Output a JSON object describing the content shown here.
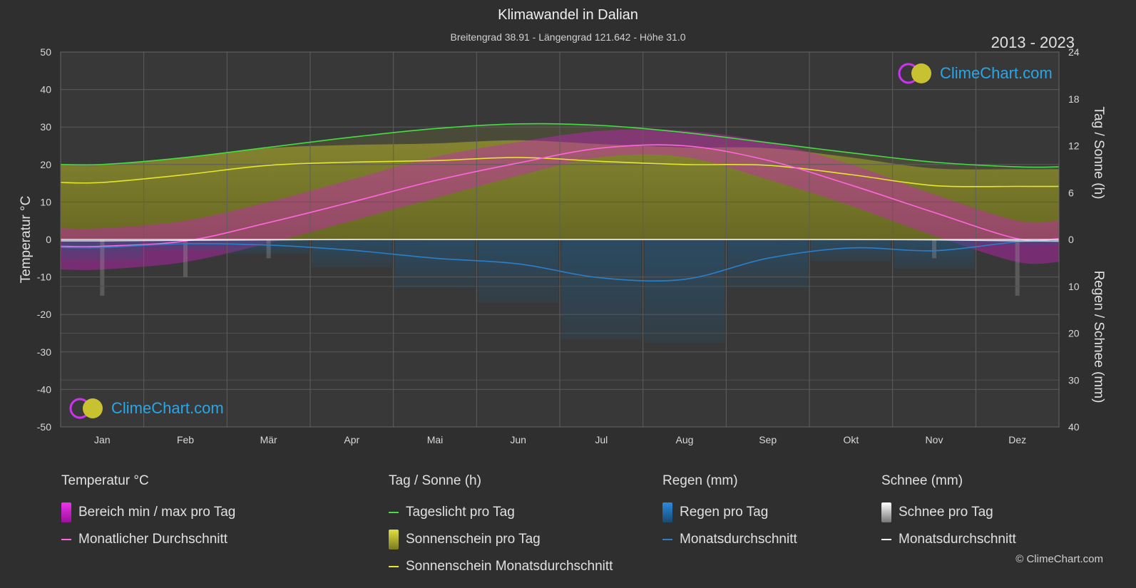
{
  "header": {
    "title": "Klimawandel in Dalian",
    "subtitle": "Breitengrad 38.91 - Längengrad 121.642 - Höhe 31.0",
    "period": "2013 - 2023"
  },
  "logo_text": "ClimeChart.com",
  "copyright": "© ClimeChart.com",
  "colors": {
    "background": "#2f2f2f",
    "daylight": "#44dd44",
    "sunshine_avg": "#e6e62a",
    "sunshine_fill": "#9a9a2a",
    "temp_avg": "#ff66dd",
    "temp_range": "#dd22cc",
    "rain": "#2a7fc8",
    "snow": "#cccccc"
  },
  "legend": {
    "temp": {
      "title": "Temperatur °C",
      "items": [
        "Bereich min / max pro Tag",
        "Monatlicher Durchschnitt"
      ]
    },
    "sun": {
      "title": "Tag / Sonne (h)",
      "items": [
        "Tageslicht pro Tag",
        "Sonnenschein pro Tag",
        "Sonnenschein Monatsdurchschnitt"
      ]
    },
    "rain": {
      "title": "Regen (mm)",
      "items": [
        "Regen pro Tag",
        "Monatsdurchschnitt"
      ]
    },
    "snow": {
      "title": "Schnee (mm)",
      "items": [
        "Schnee pro Tag",
        "Monatsdurchschnitt"
      ]
    }
  },
  "chart_data": {
    "type": "line",
    "categories": [
      "Jan",
      "Feb",
      "Mär",
      "Apr",
      "Mai",
      "Jun",
      "Jul",
      "Aug",
      "Sep",
      "Okt",
      "Nov",
      "Dez"
    ],
    "left_axis": {
      "label": "Temperatur °C",
      "range": [
        -50,
        50
      ],
      "ticks": [
        50,
        40,
        30,
        20,
        10,
        0,
        -10,
        -20,
        -30,
        -40,
        -50
      ]
    },
    "right_axis_top": {
      "label": "Tag / Sonne (h)",
      "range": [
        0,
        24
      ],
      "ticks": [
        24,
        18,
        12,
        6,
        0
      ]
    },
    "right_axis_bottom": {
      "label": "Regen / Schnee (mm)",
      "range": [
        0,
        40
      ],
      "ticks": [
        0,
        10,
        20,
        30,
        40
      ]
    },
    "grid": true,
    "series": [
      {
        "name": "Tageslicht pro Tag",
        "axis": "hours",
        "values": [
          9.6,
          10.5,
          11.8,
          13.1,
          14.2,
          14.8,
          14.6,
          13.7,
          12.4,
          11.1,
          9.9,
          9.3
        ]
      },
      {
        "name": "Sonnenschein Monatsdurchschnitt",
        "axis": "hours",
        "values": [
          7.3,
          8.3,
          9.5,
          9.9,
          10.1,
          10.5,
          10.0,
          9.6,
          9.5,
          8.3,
          6.9,
          6.8
        ]
      },
      {
        "name": "Monatlicher Durchschnitt",
        "axis": "temp",
        "values": [
          -1.8,
          -0.4,
          4.5,
          10.0,
          15.7,
          20.4,
          24.4,
          25.0,
          21.1,
          14.5,
          7.2,
          0.2
        ]
      },
      {
        "name": "Regen Monatsdurchschnitt",
        "axis": "mm",
        "values": [
          1.7,
          0.9,
          1.2,
          2.3,
          4.0,
          5.2,
          8.2,
          8.5,
          4.0,
          1.8,
          2.4,
          0.5
        ]
      },
      {
        "name": "Schnee Monatsdurchschnitt",
        "axis": "mm",
        "values": [
          0.3,
          0.2,
          0.1,
          0,
          0,
          0,
          0,
          0,
          0,
          0,
          0.1,
          0.3
        ]
      },
      {
        "name": "Bereich min / max pro Tag",
        "axis": "temp",
        "min": [
          -8,
          -6,
          -1,
          5,
          11,
          17,
          22,
          22,
          16,
          9,
          1,
          -6
        ],
        "max": [
          3,
          5,
          10,
          16,
          22,
          26,
          29,
          29,
          26,
          20,
          12,
          5
        ]
      }
    ]
  }
}
